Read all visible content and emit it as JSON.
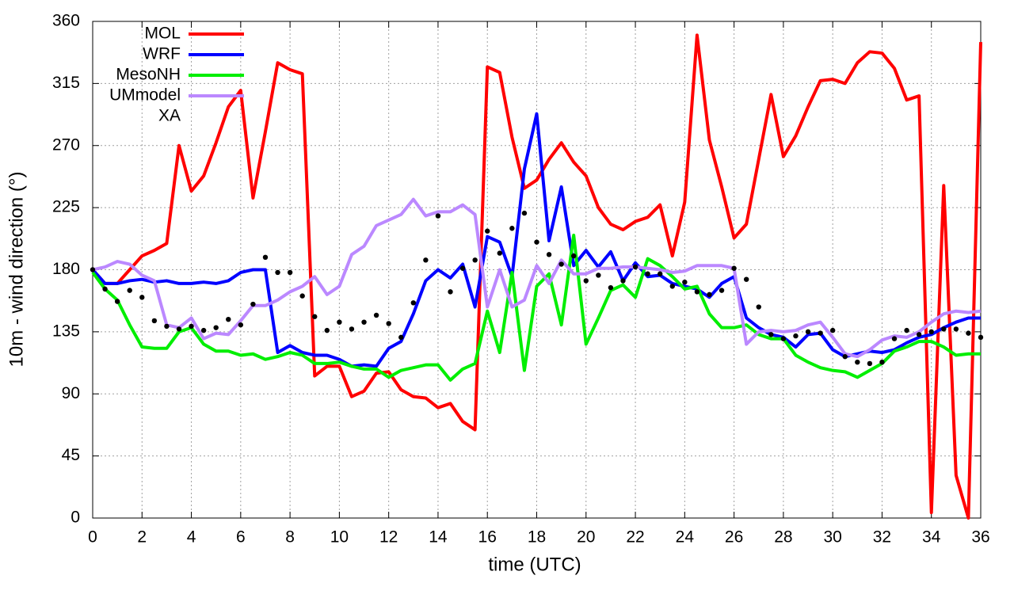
{
  "chart_data": {
    "type": "line",
    "xlabel": "time (UTC)",
    "ylabel": "10m - wind direction (°)",
    "xlim": [
      0,
      36
    ],
    "ylim": [
      0,
      360
    ],
    "xticks": [
      0,
      2,
      4,
      6,
      8,
      10,
      12,
      14,
      16,
      18,
      20,
      22,
      24,
      26,
      28,
      30,
      32,
      34,
      36
    ],
    "yticks": [
      0,
      45,
      90,
      135,
      180,
      225,
      270,
      315,
      360
    ],
    "grid": true,
    "legend": "upper left",
    "x": [
      0,
      0.5,
      1,
      1.5,
      2,
      2.5,
      3,
      3.5,
      4,
      4.5,
      5,
      5.5,
      6,
      6.5,
      7,
      7.5,
      8,
      8.5,
      9,
      9.5,
      10,
      10.5,
      11,
      11.5,
      12,
      12.5,
      13,
      13.5,
      14,
      14.5,
      15,
      15.5,
      16,
      16.5,
      17,
      17.5,
      18,
      18.5,
      19,
      19.5,
      20,
      20.5,
      21,
      21.5,
      22,
      22.5,
      23,
      23.5,
      24,
      24.5,
      25,
      25.5,
      26,
      26.5,
      27,
      27.5,
      28,
      28.5,
      29,
      29.5,
      30,
      30.5,
      31,
      31.5,
      32,
      32.5,
      33,
      33.5,
      34,
      34.5,
      35,
      35.5,
      36
    ],
    "series": [
      {
        "name": "MOL",
        "color": "#ff0000",
        "style": "line",
        "values": [
          180,
          170,
          170,
          180,
          190,
          194,
          199,
          270,
          237,
          248,
          272,
          298,
          310,
          232,
          280,
          330,
          325,
          322,
          103,
          110,
          110,
          88,
          92,
          105,
          106,
          93,
          88,
          87,
          80,
          83,
          70,
          64,
          327,
          323,
          276,
          239,
          245,
          260,
          272,
          258,
          248,
          225,
          213,
          209,
          215,
          218,
          227,
          190,
          229,
          350,
          274,
          240,
          203,
          213,
          260,
          307,
          262,
          277,
          298,
          317,
          318,
          315,
          330,
          338,
          337,
          326,
          303,
          306,
          4,
          241,
          31,
          0,
          345
        ]
      },
      {
        "name": "WRF",
        "color": "#0000ff",
        "style": "line",
        "values": [
          180,
          170,
          170,
          172,
          173,
          171,
          172,
          170,
          170,
          171,
          170,
          172,
          178,
          180,
          180,
          120,
          125,
          120,
          118,
          118,
          115,
          110,
          111,
          110,
          123,
          128,
          148,
          172,
          180,
          174,
          184,
          153,
          204,
          200,
          175,
          253,
          293,
          201,
          240,
          183,
          194,
          182,
          193,
          172,
          185,
          175,
          176,
          170,
          168,
          166,
          160,
          170,
          175,
          145,
          138,
          133,
          131,
          124,
          133,
          134,
          122,
          117,
          119,
          121,
          120,
          122,
          127,
          131,
          133,
          138,
          142,
          145,
          145
        ]
      },
      {
        "name": "MesoNH",
        "color": "#00ee00",
        "style": "line",
        "values": [
          178,
          166,
          158,
          140,
          124,
          123,
          123,
          135,
          138,
          126,
          121,
          121,
          118,
          119,
          115,
          117,
          120,
          118,
          112,
          112,
          113,
          110,
          108,
          108,
          102,
          107,
          109,
          111,
          111,
          100,
          108,
          112,
          150,
          120,
          178,
          107,
          168,
          177,
          140,
          205,
          126,
          145,
          165,
          169,
          160,
          188,
          183,
          175,
          166,
          168,
          148,
          138,
          138,
          140,
          133,
          130,
          130,
          118,
          113,
          109,
          107,
          106,
          102,
          107,
          112,
          121,
          124,
          128,
          128,
          124,
          118,
          119,
          119
        ]
      },
      {
        "name": "UMmodel",
        "color": "#bb88ff",
        "style": "line",
        "values": [
          180,
          182,
          186,
          184,
          176,
          172,
          140,
          138,
          145,
          130,
          134,
          133,
          143,
          154,
          154,
          158,
          164,
          168,
          175,
          162,
          168,
          191,
          197,
          212,
          216,
          220,
          231,
          219,
          222,
          222,
          227,
          220,
          153,
          180,
          153,
          158,
          183,
          170,
          187,
          177,
          177,
          181,
          181,
          182,
          182,
          181,
          180,
          178,
          179,
          183,
          183,
          183,
          181,
          126,
          135,
          136,
          135,
          136,
          140,
          142,
          131,
          119,
          117,
          122,
          129,
          132,
          131,
          135,
          142,
          148,
          150,
          149,
          150
        ]
      },
      {
        "name": "XA",
        "color": "#000000",
        "style": "points",
        "values": [
          180,
          166,
          157,
          165,
          160,
          143,
          139,
          137,
          139,
          136,
          138,
          144,
          140,
          155,
          189,
          178,
          178,
          161,
          146,
          136,
          142,
          137,
          142,
          147,
          141,
          131,
          156,
          187,
          219,
          164,
          181,
          187,
          208,
          192,
          210,
          221,
          200,
          191,
          184,
          190,
          172,
          176,
          167,
          172,
          182,
          177,
          177,
          168,
          171,
          164,
          162,
          165,
          181,
          173,
          153,
          133,
          130,
          132,
          135,
          134,
          136,
          117,
          113,
          112,
          113,
          130,
          136,
          133,
          135,
          137,
          137,
          134,
          131
        ]
      }
    ]
  }
}
